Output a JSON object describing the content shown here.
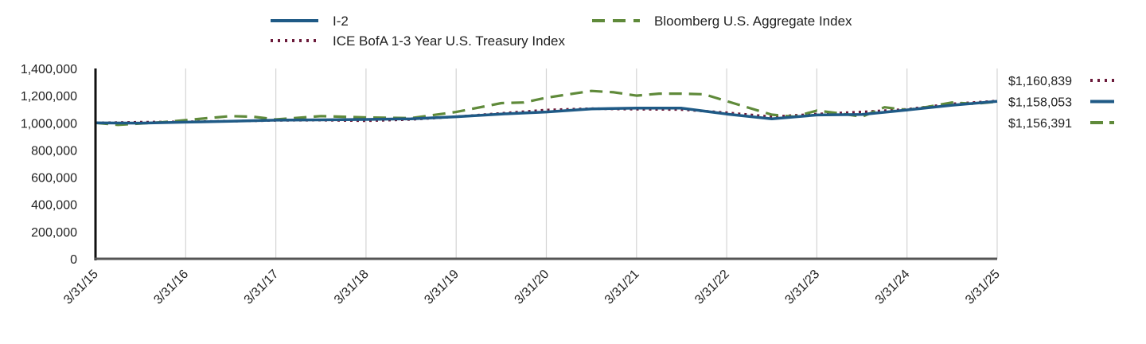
{
  "chart_data": {
    "type": "line",
    "title": "",
    "xlabel": "",
    "ylabel": "",
    "ylim": [
      0,
      1400000
    ],
    "yticks": [
      0,
      200000,
      400000,
      600000,
      800000,
      1000000,
      1200000,
      1400000
    ],
    "ytick_labels": [
      "0",
      "200,000",
      "400,000",
      "600,000",
      "800,000",
      "1,000,000",
      "1,200,000",
      "1,400,000"
    ],
    "xlim": [
      0,
      10
    ],
    "xticks": [
      0,
      1,
      2,
      3,
      4,
      5,
      6,
      7,
      8,
      9,
      10
    ],
    "xtick_labels": [
      "3/31/15",
      "3/31/16",
      "3/31/17",
      "3/31/18",
      "3/31/19",
      "3/31/20",
      "3/31/21",
      "3/31/22",
      "3/31/23",
      "3/31/24",
      "3/31/25"
    ],
    "grid": "vertical",
    "legend_position": "top",
    "series": [
      {
        "name": "I-2",
        "style": "solid",
        "color": "#1f5a86",
        "end_label": "$1,158,053",
        "x": [
          0,
          0.5,
          1,
          1.5,
          2,
          2.5,
          3,
          3.5,
          4,
          4.5,
          5,
          5.5,
          6,
          6.5,
          7,
          7.5,
          8,
          8.5,
          9,
          9.5,
          10
        ],
        "values": [
          1000000,
          998000,
          1005000,
          1012000,
          1020000,
          1022000,
          1025000,
          1030000,
          1045000,
          1065000,
          1080000,
          1103000,
          1108000,
          1108000,
          1065000,
          1030000,
          1058000,
          1062000,
          1095000,
          1130000,
          1158053
        ]
      },
      {
        "name": "ICE BofA 1-3 Year U.S. Treasury Index",
        "style": "dotted",
        "color": "#6b1a3a",
        "end_label": "$1,160,839",
        "x": [
          0,
          0.5,
          1,
          1.5,
          2,
          2.5,
          3,
          3.5,
          4,
          4.5,
          5,
          5.5,
          6,
          6.5,
          7,
          7.5,
          8,
          8.5,
          9,
          9.5,
          10
        ],
        "values": [
          1000000,
          1005000,
          1008000,
          1012000,
          1018000,
          1020000,
          1015000,
          1025000,
          1045000,
          1070000,
          1095000,
          1105000,
          1100000,
          1098000,
          1075000,
          1045000,
          1065000,
          1080000,
          1100000,
          1140000,
          1160839
        ]
      },
      {
        "name": "Bloomberg U.S. Aggregate Index",
        "style": "dashed",
        "color": "#5f8a3a",
        "end_label": "$1,156,391",
        "x": [
          0,
          0.25,
          0.75,
          1,
          1.25,
          1.5,
          1.75,
          2,
          2.5,
          3,
          3.5,
          4,
          4.5,
          4.75,
          5,
          5.25,
          5.5,
          5.75,
          6,
          6.25,
          6.5,
          6.75,
          7,
          7.25,
          7.5,
          7.75,
          8,
          8.25,
          8.5,
          8.75,
          9,
          9.25,
          9.5,
          9.75,
          10
        ],
        "values": [
          1000000,
          985000,
          1005000,
          1020000,
          1035000,
          1050000,
          1045000,
          1025000,
          1050000,
          1040000,
          1035000,
          1080000,
          1145000,
          1150000,
          1185000,
          1210000,
          1235000,
          1225000,
          1200000,
          1215000,
          1215000,
          1210000,
          1160000,
          1110000,
          1060000,
          1045000,
          1090000,
          1070000,
          1045000,
          1115000,
          1095000,
          1120000,
          1150000,
          1140000,
          1156391
        ]
      }
    ]
  }
}
